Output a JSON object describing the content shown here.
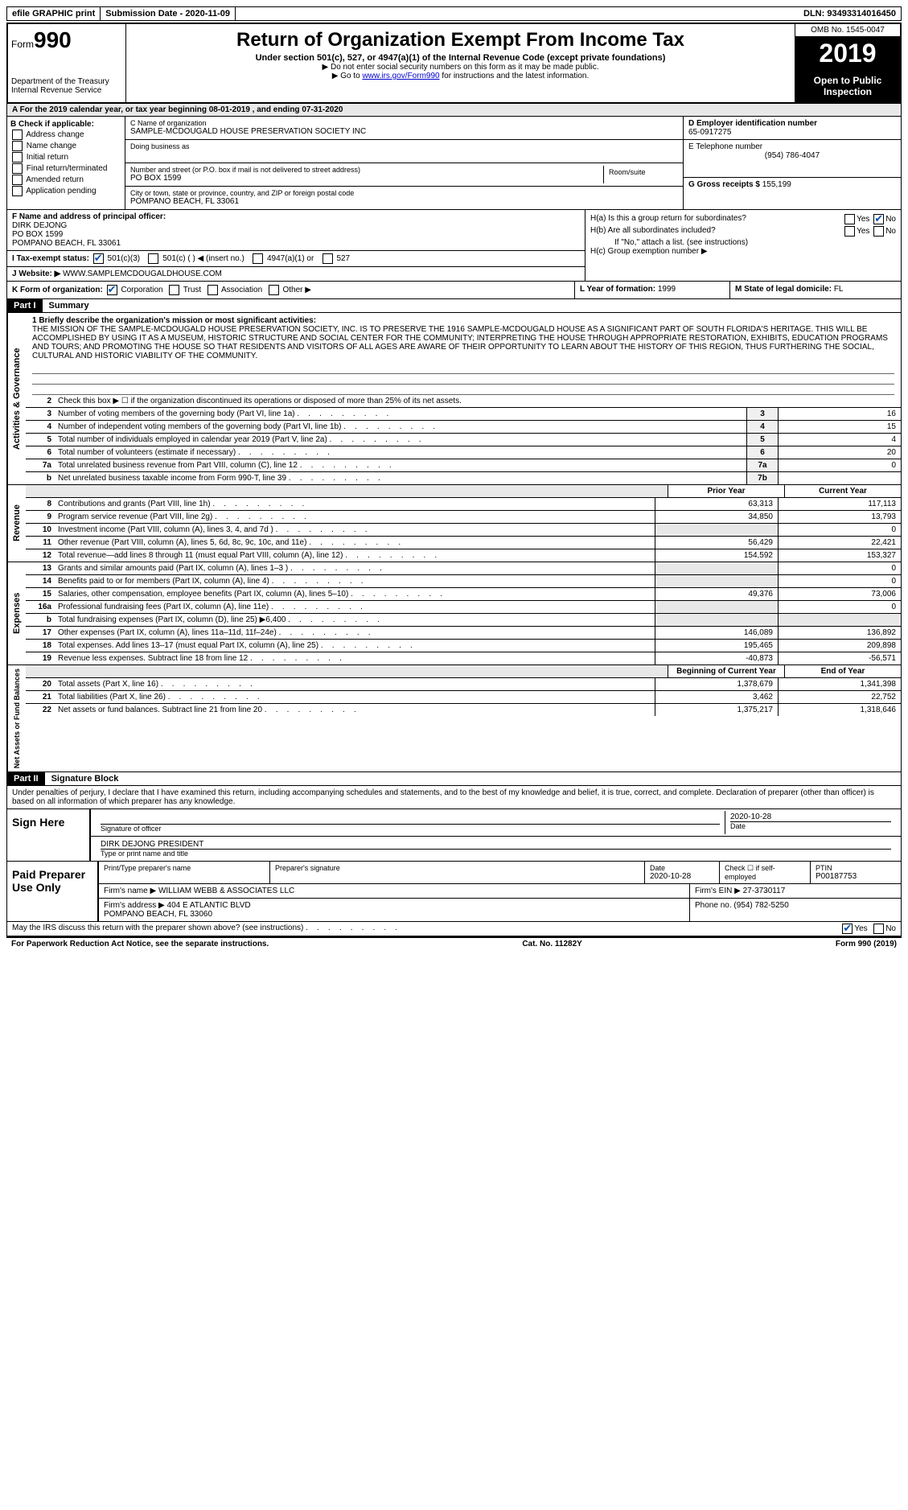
{
  "topbar": {
    "efile": "efile GRAPHIC print",
    "submission": "Submission Date - 2020-11-09",
    "dln": "DLN: 93493314016450"
  },
  "header": {
    "form_word": "Form",
    "form_num": "990",
    "dept": "Department of the Treasury\nInternal Revenue Service",
    "title": "Return of Organization Exempt From Income Tax",
    "subtitle": "Under section 501(c), 527, or 4947(a)(1) of the Internal Revenue Code (except private foundations)",
    "note1": "▶ Do not enter social security numbers on this form as it may be made public.",
    "note2_pre": "▶ Go to ",
    "note2_link": "www.irs.gov/Form990",
    "note2_post": " for instructions and the latest information.",
    "omb": "OMB No. 1545-0047",
    "year": "2019",
    "open": "Open to Public Inspection"
  },
  "row_a": "A For the 2019 calendar year, or tax year beginning 08-01-2019    , and ending 07-31-2020",
  "col_b": {
    "title": "B Check if applicable:",
    "opts": [
      "Address change",
      "Name change",
      "Initial return",
      "Final return/terminated",
      "Amended return",
      "Application pending"
    ]
  },
  "col_c": {
    "name_label": "C Name of organization",
    "name": "SAMPLE-MCDOUGALD HOUSE PRESERVATION SOCIETY INC",
    "dba_label": "Doing business as",
    "dba": "",
    "street_label": "Number and street (or P.O. box if mail is not delivered to street address)",
    "street": "PO BOX 1599",
    "room_label": "Room/suite",
    "city_label": "City or town, state or province, country, and ZIP or foreign postal code",
    "city": "POMPANO BEACH, FL  33061"
  },
  "col_d": {
    "ein_label": "D Employer identification number",
    "ein": "65-0917275",
    "phone_label": "E Telephone number",
    "phone": "(954) 786-4047",
    "gross_label": "G Gross receipts $",
    "gross": "155,199"
  },
  "col_f": {
    "officer_label": "F Name and address of principal officer:",
    "officer": "DIRK DEJONG\nPO BOX 1599\nPOMPANO BEACH, FL  33061",
    "tax_label": "I Tax-exempt status:",
    "tax_501c3": "501(c)(3)",
    "tax_501c": "501(c) (  ) ◀ (insert no.)",
    "tax_4947": "4947(a)(1) or",
    "tax_527": "527",
    "web_label": "J Website: ▶",
    "web": "WWW.SAMPLEMCDOUGALDHOUSE.COM"
  },
  "col_h": {
    "ha": "H(a)  Is this a group return for subordinates?",
    "hb": "H(b)  Are all subordinates included?",
    "hb_note": "If \"No,\" attach a list. (see instructions)",
    "hc": "H(c)  Group exemption number ▶",
    "yes": "Yes",
    "no": "No"
  },
  "row_k": {
    "k": "K Form of organization:",
    "opts": [
      "Corporation",
      "Trust",
      "Association",
      "Other ▶"
    ],
    "l_label": "L Year of formation:",
    "l_val": "1999",
    "m_label": "M State of legal domicile:",
    "m_val": "FL"
  },
  "part1": {
    "header": "Part I",
    "title": "Summary"
  },
  "mission": {
    "label": "1  Briefly describe the organization's mission or most significant activities:",
    "text": "THE MISSION OF THE SAMPLE-MCDOUGALD HOUSE PRESERVATION SOCIETY, INC. IS TO PRESERVE THE 1916 SAMPLE-MCDOUGALD HOUSE AS A SIGNIFICANT PART OF SOUTH FLORIDA'S HERITAGE. THIS WILL BE ACCOMPLISHED BY USING IT AS A MUSEUM, HISTORIC STRUCTURE AND SOCIAL CENTER FOR THE COMMUNITY; INTERPRETING THE HOUSE THROUGH APPROPRIATE RESTORATION, EXHIBITS, EDUCATION PROGRAMS AND TOURS; AND PROMOTING THE HOUSE SO THAT RESIDENTS AND VISITORS OF ALL AGES ARE AWARE OF THEIR OPPORTUNITY TO LEARN ABOUT THE HISTORY OF THIS REGION, THUS FURTHERING THE SOCIAL, CULTURAL AND HISTORIC VIABILITY OF THE COMMUNITY."
  },
  "gov_lines": [
    {
      "num": "2",
      "text": "Check this box ▶ ☐ if the organization discontinued its operations or disposed of more than 25% of its net assets.",
      "box": "",
      "val": ""
    },
    {
      "num": "3",
      "text": "Number of voting members of the governing body (Part VI, line 1a)",
      "box": "3",
      "val": "16"
    },
    {
      "num": "4",
      "text": "Number of independent voting members of the governing body (Part VI, line 1b)",
      "box": "4",
      "val": "15"
    },
    {
      "num": "5",
      "text": "Total number of individuals employed in calendar year 2019 (Part V, line 2a)",
      "box": "5",
      "val": "4"
    },
    {
      "num": "6",
      "text": "Total number of volunteers (estimate if necessary)",
      "box": "6",
      "val": "20"
    },
    {
      "num": "7a",
      "text": "Total unrelated business revenue from Part VIII, column (C), line 12",
      "box": "7a",
      "val": "0"
    },
    {
      "num": "b",
      "text": "Net unrelated business taxable income from Form 990-T, line 39",
      "box": "7b",
      "val": ""
    }
  ],
  "year_cols": {
    "prior": "Prior Year",
    "current": "Current Year"
  },
  "revenue_lines": [
    {
      "num": "8",
      "text": "Contributions and grants (Part VIII, line 1h)",
      "prior": "63,313",
      "current": "117,113"
    },
    {
      "num": "9",
      "text": "Program service revenue (Part VIII, line 2g)",
      "prior": "34,850",
      "current": "13,793"
    },
    {
      "num": "10",
      "text": "Investment income (Part VIII, column (A), lines 3, 4, and 7d )",
      "prior": "",
      "current": "0"
    },
    {
      "num": "11",
      "text": "Other revenue (Part VIII, column (A), lines 5, 6d, 8c, 9c, 10c, and 11e)",
      "prior": "56,429",
      "current": "22,421"
    },
    {
      "num": "12",
      "text": "Total revenue—add lines 8 through 11 (must equal Part VIII, column (A), line 12)",
      "prior": "154,592",
      "current": "153,327"
    }
  ],
  "expense_lines": [
    {
      "num": "13",
      "text": "Grants and similar amounts paid (Part IX, column (A), lines 1–3 )",
      "prior": "",
      "current": "0"
    },
    {
      "num": "14",
      "text": "Benefits paid to or for members (Part IX, column (A), line 4)",
      "prior": "",
      "current": "0"
    },
    {
      "num": "15",
      "text": "Salaries, other compensation, employee benefits (Part IX, column (A), lines 5–10)",
      "prior": "49,376",
      "current": "73,006"
    },
    {
      "num": "16a",
      "text": "Professional fundraising fees (Part IX, column (A), line 11e)",
      "prior": "",
      "current": "0"
    },
    {
      "num": "b",
      "text": "Total fundraising expenses (Part IX, column (D), line 25) ▶6,400",
      "prior": "",
      "current": ""
    },
    {
      "num": "17",
      "text": "Other expenses (Part IX, column (A), lines 11a–11d, 11f–24e)",
      "prior": "146,089",
      "current": "136,892"
    },
    {
      "num": "18",
      "text": "Total expenses. Add lines 13–17 (must equal Part IX, column (A), line 25)",
      "prior": "195,465",
      "current": "209,898"
    },
    {
      "num": "19",
      "text": "Revenue less expenses. Subtract line 18 from line 12",
      "prior": "-40,873",
      "current": "-56,571"
    }
  ],
  "net_cols": {
    "begin": "Beginning of Current Year",
    "end": "End of Year"
  },
  "net_lines": [
    {
      "num": "20",
      "text": "Total assets (Part X, line 16)",
      "prior": "1,378,679",
      "current": "1,341,398"
    },
    {
      "num": "21",
      "text": "Total liabilities (Part X, line 26)",
      "prior": "3,462",
      "current": "22,752"
    },
    {
      "num": "22",
      "text": "Net assets or fund balances. Subtract line 21 from line 20",
      "prior": "1,375,217",
      "current": "1,318,646"
    }
  ],
  "side_labels": {
    "gov": "Activities & Governance",
    "rev": "Revenue",
    "exp": "Expenses",
    "net": "Net Assets or Fund Balances"
  },
  "part2": {
    "header": "Part II",
    "title": "Signature Block",
    "intro": "Under penalties of perjury, I declare that I have examined this return, including accompanying schedules and statements, and to the best of my knowledge and belief, it is true, correct, and complete. Declaration of preparer (other than officer) is based on all information of which preparer has any knowledge."
  },
  "sign": {
    "label": "Sign Here",
    "sig_label": "Signature of officer",
    "date": "2020-10-28",
    "date_label": "Date",
    "name": "DIRK DEJONG PRESIDENT",
    "name_label": "Type or print name and title"
  },
  "prep": {
    "label": "Paid Preparer Use Only",
    "h1": "Print/Type preparer's name",
    "h2": "Preparer's signature",
    "h3": "Date",
    "h3v": "2020-10-28",
    "h4": "Check ☐ if self-employed",
    "h5": "PTIN",
    "h5v": "P00187753",
    "firm_label": "Firm's name    ▶",
    "firm": "WILLIAM WEBB & ASSOCIATES LLC",
    "ein_label": "Firm's EIN ▶",
    "ein": "27-3730117",
    "addr_label": "Firm's address ▶",
    "addr": "404 E ATLANTIC BLVD\nPOMPANO BEACH, FL  33060",
    "phone_label": "Phone no.",
    "phone": "(954) 782-5250"
  },
  "footer": {
    "q": "May the IRS discuss this return with the preparer shown above? (see instructions)",
    "yes": "Yes",
    "no": "No"
  },
  "bottom": {
    "left": "For Paperwork Reduction Act Notice, see the separate instructions.",
    "center": "Cat. No. 11282Y",
    "right": "Form 990 (2019)"
  }
}
